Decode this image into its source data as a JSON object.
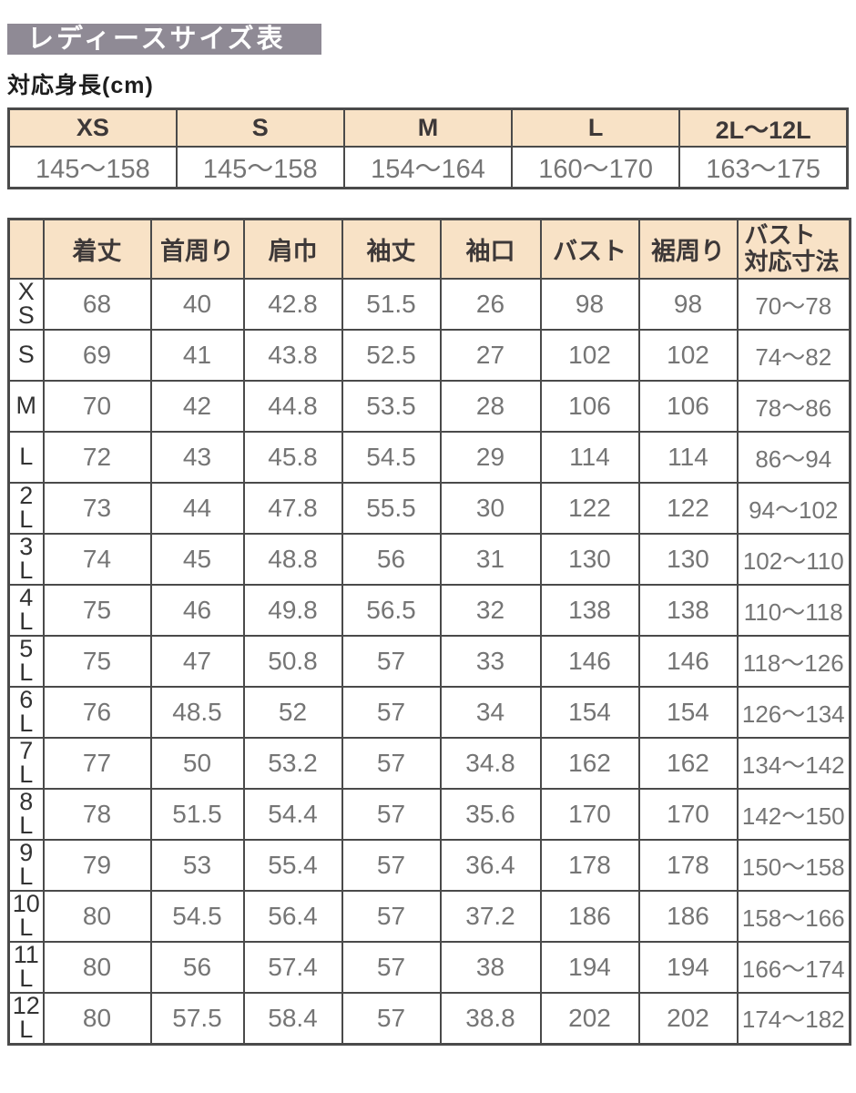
{
  "page": {
    "title": "レディースサイズ表",
    "height_section_label": "対応身長(cm)"
  },
  "colors": {
    "title_bg": "#8f8a95",
    "title_text": "#ffffff",
    "header_bg": "#f8e2c6",
    "border": "#4a4a4a",
    "value_text": "#757575",
    "header_text": "#3d3838"
  },
  "height_table": {
    "columns": [
      "XS",
      "S",
      "M",
      "L",
      "2L～12L"
    ],
    "values": [
      "145～158",
      "145～158",
      "154～164",
      "160～170",
      "163～175"
    ]
  },
  "size_table": {
    "columns": [
      "",
      "着丈",
      "首周り",
      "肩巾",
      "袖丈",
      "袖口",
      "バスト",
      "裾周り",
      "バスト\n対応寸法"
    ],
    "rows": [
      {
        "size": "X\nS",
        "values": [
          "68",
          "40",
          "42.8",
          "51.5",
          "26",
          "98",
          "98",
          "70～78"
        ]
      },
      {
        "size": "S",
        "values": [
          "69",
          "41",
          "43.8",
          "52.5",
          "27",
          "102",
          "102",
          "74～82"
        ]
      },
      {
        "size": "M",
        "values": [
          "70",
          "42",
          "44.8",
          "53.5",
          "28",
          "106",
          "106",
          "78～86"
        ]
      },
      {
        "size": "L",
        "values": [
          "72",
          "43",
          "45.8",
          "54.5",
          "29",
          "114",
          "114",
          "86～94"
        ]
      },
      {
        "size": "2\nL",
        "values": [
          "73",
          "44",
          "47.8",
          "55.5",
          "30",
          "122",
          "122",
          "94～102"
        ]
      },
      {
        "size": "3\nL",
        "values": [
          "74",
          "45",
          "48.8",
          "56",
          "31",
          "130",
          "130",
          "102～110"
        ]
      },
      {
        "size": "4\nL",
        "values": [
          "75",
          "46",
          "49.8",
          "56.5",
          "32",
          "138",
          "138",
          "110～118"
        ]
      },
      {
        "size": "5\nL",
        "values": [
          "75",
          "47",
          "50.8",
          "57",
          "33",
          "146",
          "146",
          "118～126"
        ]
      },
      {
        "size": "6\nL",
        "values": [
          "76",
          "48.5",
          "52",
          "57",
          "34",
          "154",
          "154",
          "126～134"
        ]
      },
      {
        "size": "7\nL",
        "values": [
          "77",
          "50",
          "53.2",
          "57",
          "34.8",
          "162",
          "162",
          "134～142"
        ]
      },
      {
        "size": "8\nL",
        "values": [
          "78",
          "51.5",
          "54.4",
          "57",
          "35.6",
          "170",
          "170",
          "142～150"
        ]
      },
      {
        "size": "9\nL",
        "values": [
          "79",
          "53",
          "55.4",
          "57",
          "36.4",
          "178",
          "178",
          "150～158"
        ]
      },
      {
        "size": "10\nL",
        "values": [
          "80",
          "54.5",
          "56.4",
          "57",
          "37.2",
          "186",
          "186",
          "158～166"
        ]
      },
      {
        "size": "11\nL",
        "values": [
          "80",
          "56",
          "57.4",
          "57",
          "38",
          "194",
          "194",
          "166～174"
        ]
      },
      {
        "size": "12\nL",
        "values": [
          "80",
          "57.5",
          "58.4",
          "57",
          "38.8",
          "202",
          "202",
          "174～182"
        ]
      }
    ]
  }
}
